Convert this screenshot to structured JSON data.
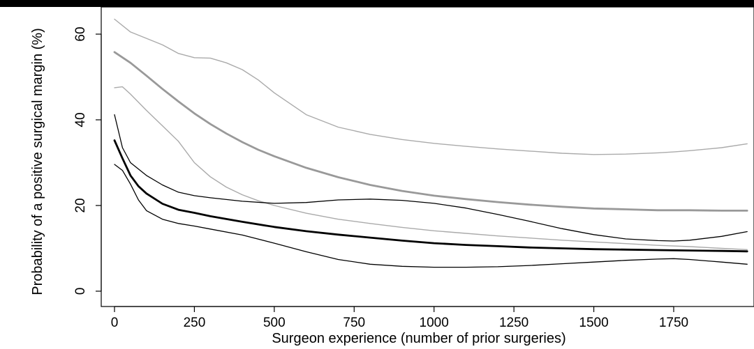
{
  "chart_data": {
    "type": "line",
    "title": "",
    "xlabel": "Surgeon experience (number of prior surgeries)",
    "ylabel": "Probability of a positive surgical margin (%)",
    "xlim": [
      0,
      1980
    ],
    "ylim": [
      0,
      63
    ],
    "x_ticks": [
      0,
      250,
      500,
      750,
      1000,
      1250,
      1500,
      1750
    ],
    "y_ticks": [
      0,
      20,
      40,
      60
    ],
    "grid": false,
    "legend": "none",
    "series": [
      {
        "color": "#aaaaaa",
        "width": 1.4,
        "x": [
          0,
          50,
          100,
          150,
          200,
          250,
          300,
          350,
          400,
          450,
          500,
          600,
          700,
          800,
          900,
          1000,
          1100,
          1200,
          1300,
          1400,
          1500,
          1600,
          1700,
          1750,
          1800,
          1900,
          1980
        ],
        "y": [
          63.5,
          60.5,
          59,
          57.5,
          55.5,
          54.5,
          54.4,
          53.3,
          51.7,
          49.3,
          46.3,
          41.2,
          38.3,
          36.6,
          35.4,
          34.5,
          33.8,
          33.2,
          32.7,
          32.2,
          31.9,
          32,
          32.3,
          32.5,
          32.8,
          33.5,
          34.4
        ]
      },
      {
        "color": "#999999",
        "width": 2.8,
        "x": [
          0,
          50,
          100,
          150,
          200,
          250,
          300,
          350,
          400,
          450,
          500,
          600,
          700,
          800,
          900,
          1000,
          1100,
          1200,
          1300,
          1400,
          1500,
          1600,
          1700,
          1800,
          1900,
          1980
        ],
        "y": [
          55.8,
          53.3,
          50.3,
          47.2,
          44.3,
          41.5,
          39,
          36.8,
          34.8,
          33,
          31.5,
          28.8,
          26.6,
          24.8,
          23.4,
          22.3,
          21.5,
          20.8,
          20.2,
          19.7,
          19.3,
          19.1,
          18.9,
          18.9,
          18.8,
          18.8
        ]
      },
      {
        "color": "#aaaaaa",
        "width": 1.4,
        "x": [
          0,
          25,
          50,
          100,
          150,
          200,
          250,
          300,
          350,
          400,
          450,
          500,
          600,
          700,
          800,
          900,
          1000,
          1100,
          1200,
          1300,
          1400,
          1500,
          1600,
          1700,
          1800,
          1900,
          1980
        ],
        "y": [
          47.5,
          47.7,
          46,
          42.2,
          38.6,
          35,
          30,
          26.7,
          24.3,
          22.5,
          21.1,
          20,
          18.2,
          16.8,
          15.8,
          14.9,
          14.1,
          13.5,
          12.9,
          12.4,
          11.9,
          11.5,
          11.1,
          10.7,
          10.4,
          10,
          9.7
        ]
      },
      {
        "color": "#000000",
        "width": 1.3,
        "x": [
          0,
          25,
          50,
          100,
          150,
          200,
          250,
          300,
          400,
          500,
          600,
          700,
          800,
          900,
          1000,
          1100,
          1200,
          1300,
          1400,
          1500,
          1600,
          1700,
          1750,
          1800,
          1900,
          1980
        ],
        "y": [
          41.2,
          33.5,
          30,
          27,
          24.8,
          23.1,
          22.3,
          21.8,
          21,
          20.5,
          20.7,
          21.3,
          21.5,
          21.2,
          20.5,
          19.4,
          17.9,
          16.3,
          14.6,
          13.2,
          12.2,
          11.8,
          11.7,
          11.9,
          12.8,
          13.9
        ]
      },
      {
        "color": "#000000",
        "width": 2.8,
        "x": [
          0,
          25,
          50,
          75,
          100,
          150,
          200,
          250,
          300,
          400,
          500,
          600,
          700,
          800,
          900,
          1000,
          1100,
          1200,
          1300,
          1400,
          1500,
          1600,
          1700,
          1800,
          1900,
          1980
        ],
        "y": [
          35.2,
          31,
          27,
          24.5,
          22.8,
          20.4,
          19,
          18.3,
          17.5,
          16.2,
          15,
          14,
          13.2,
          12.5,
          11.8,
          11.2,
          10.8,
          10.5,
          10.2,
          10,
          9.8,
          9.7,
          9.6,
          9.5,
          9.4,
          9.3
        ]
      },
      {
        "color": "#000000",
        "width": 1.3,
        "x": [
          0,
          25,
          50,
          75,
          100,
          150,
          200,
          250,
          300,
          400,
          500,
          600,
          700,
          800,
          900,
          1000,
          1100,
          1200,
          1300,
          1400,
          1500,
          1600,
          1700,
          1750,
          1800,
          1900,
          1980
        ],
        "y": [
          29.6,
          28.2,
          25,
          21.3,
          18.8,
          16.8,
          15.8,
          15.2,
          14.5,
          13.1,
          11.2,
          9.2,
          7.4,
          6.3,
          5.8,
          5.6,
          5.6,
          5.7,
          6,
          6.4,
          6.8,
          7.2,
          7.5,
          7.6,
          7.4,
          6.8,
          6.3
        ]
      }
    ]
  }
}
